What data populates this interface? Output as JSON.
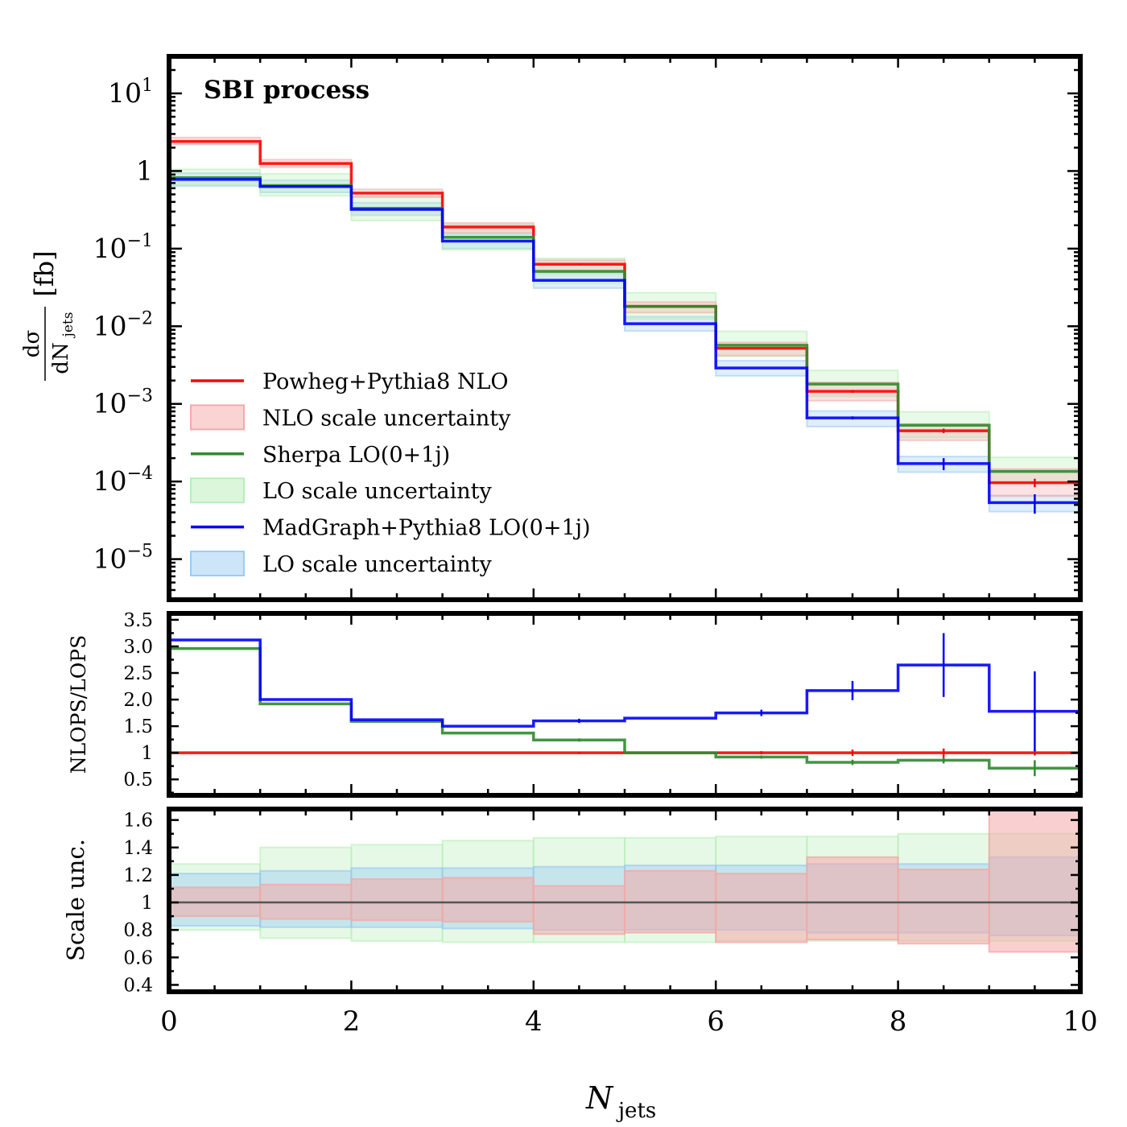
{
  "annotation": "SBI process",
  "xlabel": "N",
  "xlabel_sub": "jets",
  "top_ylabel_num": "dσ",
  "top_ylabel_den": "dN",
  "top_ylabel_den_sub": "jets",
  "top_ylabel_unit": "[fb]",
  "mid_ylabel": "NLOPS/LOPS",
  "bot_ylabel": "Scale unc.",
  "legend": [
    {
      "label": "Powheg+Pythia8 NLO",
      "kind": "line",
      "color": "#ff0000"
    },
    {
      "label": "NLO scale uncertainty",
      "kind": "band",
      "color": "#f4a9a8"
    },
    {
      "label": "Sherpa LO(0+1j)",
      "kind": "line",
      "color": "#2e8b2e"
    },
    {
      "label": "LO scale uncertainty",
      "kind": "band",
      "color": "#b8eeb8"
    },
    {
      "label": "MadGraph+Pythia8 LO(0+1j)",
      "kind": "line",
      "color": "#0000ff"
    },
    {
      "label": "LO scale uncertainty",
      "kind": "band",
      "color": "#9ccbf4"
    }
  ],
  "colors": {
    "powheg": "#ff0000",
    "sherpa": "#2e8b2e",
    "madgraph": "#0000ff",
    "powheg_band": "#f4a9a8",
    "sherpa_band": "#b8eeb8",
    "madgraph_band": "#9ccbf4",
    "unity_line": "#555555"
  },
  "chart_data": [
    {
      "type": "line",
      "panel": "top",
      "scale": "log",
      "x_edges": [
        0,
        1,
        2,
        3,
        4,
        5,
        6,
        7,
        8,
        9,
        10
      ],
      "xlim": [
        0,
        10
      ],
      "ylim": [
        3e-06,
        30
      ],
      "x_ticks": [
        "0",
        "2",
        "4",
        "6",
        "8",
        "10"
      ],
      "y_ticks": [
        {
          "value": 10,
          "base": "10",
          "exp": "1"
        },
        {
          "value": 1,
          "base": "1",
          "exp": ""
        },
        {
          "value": 0.1,
          "base": "10",
          "exp": "−1"
        },
        {
          "value": 0.01,
          "base": "10",
          "exp": "−2"
        },
        {
          "value": 0.001,
          "base": "10",
          "exp": "−3"
        },
        {
          "value": 0.0001,
          "base": "10",
          "exp": "−4"
        },
        {
          "value": 1e-05,
          "base": "10",
          "exp": "−5"
        }
      ],
      "series": [
        {
          "name": "Powheg+Pythia8 NLO",
          "values": [
            2.4,
            1.25,
            0.52,
            0.19,
            0.063,
            0.018,
            0.0052,
            0.00145,
            0.00045,
            9.65e-05
          ],
          "err": [
            0,
            0,
            0,
            0,
            0.001,
            0,
            0,
            6e-05,
            3e-05,
            1.2e-05
          ],
          "band_lo": [
            2.2,
            1.12,
            0.46,
            0.16,
            0.052,
            0.015,
            0.0042,
            0.0011,
            0.00034,
            6.5e-05
          ],
          "band_hi": [
            2.7,
            1.4,
            0.58,
            0.215,
            0.071,
            0.0205,
            0.0062,
            0.0019,
            0.00055,
            0.000145
          ]
        },
        {
          "name": "Sherpa LO(0+1j)",
          "values": [
            0.82,
            0.65,
            0.33,
            0.14,
            0.051,
            0.018,
            0.0057,
            0.0018,
            0.00053,
            0.000135
          ],
          "err": [
            0,
            0,
            0,
            0,
            0,
            0,
            0,
            0,
            0,
            0
          ],
          "band_lo": [
            0.66,
            0.48,
            0.23,
            0.097,
            0.036,
            0.0124,
            0.0041,
            0.00125,
            0.00037,
            9.5e-05
          ],
          "band_hi": [
            1.05,
            0.92,
            0.47,
            0.205,
            0.075,
            0.027,
            0.0086,
            0.0027,
            0.00079,
            0.000205
          ]
        },
        {
          "name": "MadGraph+Pythia8 LO(0+1j)",
          "values": [
            0.78,
            0.63,
            0.32,
            0.125,
            0.039,
            0.0108,
            0.0029,
            0.00066,
            0.00017,
            5.35e-05
          ],
          "err": [
            0,
            0,
            0,
            0,
            0,
            0,
            0,
            3e-05,
            3e-05,
            1.5e-05
          ],
          "band_lo": [
            0.64,
            0.53,
            0.27,
            0.1,
            0.031,
            0.0087,
            0.0023,
            0.00051,
            0.000132,
            4.1e-05
          ],
          "band_hi": [
            0.94,
            0.76,
            0.39,
            0.155,
            0.048,
            0.0133,
            0.0036,
            0.00081,
            0.00021,
            6.6e-05
          ]
        }
      ]
    },
    {
      "type": "line",
      "panel": "ratio",
      "ylabel": "NLOPS/LOPS",
      "x_edges": [
        0,
        1,
        2,
        3,
        4,
        5,
        6,
        7,
        8,
        9,
        10
      ],
      "ylim": [
        0.2,
        3.62
      ],
      "y_ticks": [
        "3.5",
        "3.0",
        "2.5",
        "2.0",
        "1.5",
        "1",
        "0.5"
      ],
      "y_tick_values": [
        3.5,
        3.0,
        2.5,
        2.0,
        1.5,
        1.0,
        0.5
      ],
      "series": [
        {
          "name": "Powheg+Pythia8 NLO",
          "values": [
            1,
            1,
            1,
            1,
            1,
            1,
            1,
            1,
            1,
            1
          ],
          "err": [
            0,
            0,
            0,
            0,
            0.02,
            0,
            0.03,
            0.06,
            0.08,
            0.05
          ]
        },
        {
          "name": "Sherpa LO(0+1j)",
          "values": [
            2.96,
            1.92,
            1.59,
            1.37,
            1.24,
            1.0,
            0.92,
            0.82,
            0.86,
            0.71
          ],
          "err": [
            0,
            0,
            0,
            0,
            0.03,
            0,
            0.03,
            0.05,
            0.06,
            0.15
          ]
        },
        {
          "name": "MadGraph+Pythia8 LO(0+1j)",
          "values": [
            3.12,
            2.0,
            1.62,
            1.5,
            1.6,
            1.65,
            1.75,
            2.17,
            2.65,
            1.78
          ],
          "err": [
            0,
            0,
            0,
            0,
            0.04,
            0,
            0.06,
            0.18,
            0.6,
            0.75
          ]
        }
      ]
    },
    {
      "type": "area",
      "panel": "scale",
      "ylabel": "Scale unc.",
      "x_edges": [
        0,
        1,
        2,
        3,
        4,
        5,
        6,
        7,
        8,
        9,
        10
      ],
      "ylim": [
        0.35,
        1.68
      ],
      "y_ticks": [
        "1.6",
        "1.4",
        "1.2",
        "1",
        "0.8",
        "0.6",
        "0.4"
      ],
      "y_tick_values": [
        1.6,
        1.4,
        1.2,
        1.0,
        0.8,
        0.6,
        0.4
      ],
      "series": [
        {
          "name": "LO scale uncertainty (Sherpa)",
          "lo": [
            0.8,
            0.74,
            0.72,
            0.71,
            0.71,
            0.71,
            0.72,
            0.72,
            0.72,
            0.72
          ],
          "hi": [
            1.28,
            1.4,
            1.42,
            1.45,
            1.47,
            1.47,
            1.48,
            1.48,
            1.5,
            1.5
          ]
        },
        {
          "name": "LO scale uncertainty (MadGraph)",
          "lo": [
            0.83,
            0.82,
            0.82,
            0.81,
            0.8,
            0.8,
            0.8,
            0.78,
            0.78,
            0.76
          ],
          "hi": [
            1.21,
            1.23,
            1.25,
            1.25,
            1.26,
            1.27,
            1.27,
            1.28,
            1.28,
            1.33
          ]
        },
        {
          "name": "NLO scale uncertainty",
          "lo": [
            0.9,
            0.88,
            0.87,
            0.86,
            0.77,
            0.78,
            0.71,
            0.73,
            0.7,
            0.64
          ],
          "hi": [
            1.11,
            1.13,
            1.17,
            1.18,
            1.12,
            1.23,
            1.21,
            1.33,
            1.24,
            1.68
          ]
        }
      ]
    }
  ]
}
